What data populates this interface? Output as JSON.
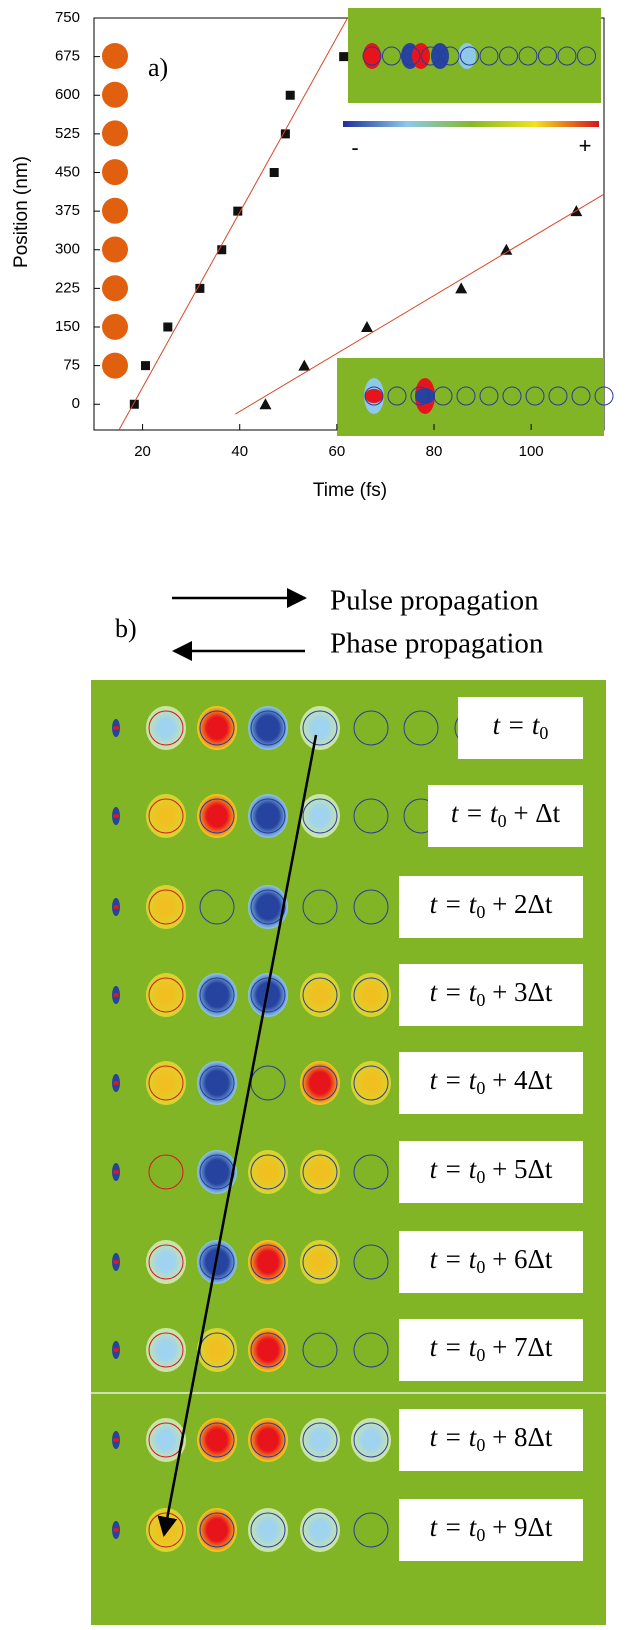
{
  "chart_data": {
    "type": "scatter",
    "panel_label": "a)",
    "x_label": "Time (fs)",
    "y_label": "Position (nm)",
    "xlim": [
      10,
      115
    ],
    "xticks": [
      20,
      40,
      60,
      80,
      100
    ],
    "ylim": [
      -50,
      750
    ],
    "yticks": [
      0,
      75,
      150,
      225,
      300,
      375,
      450,
      525,
      600,
      675,
      750
    ],
    "colorbar_labels": [
      "-",
      "+"
    ],
    "series": [
      {
        "marker": "square",
        "color": "#111111",
        "x": [
          18.3,
          20.6,
          25.2,
          31.8,
          36.3,
          39.6,
          47.1,
          49.4,
          50.4,
          61.4
        ],
        "values": [
          0,
          75,
          150,
          225,
          300,
          375,
          450,
          525,
          600,
          675
        ]
      },
      {
        "marker": "triangle",
        "color": "#111111",
        "x": [
          45.3,
          53.3,
          66.2,
          85.6,
          94.9,
          109.3
        ],
        "values": [
          0,
          75,
          150,
          225,
          300,
          375
        ]
      },
      {
        "marker": "line",
        "color": "#d9472b",
        "x": [
          14.9,
          62.2
        ],
        "values": [
          -54,
          750
        ]
      },
      {
        "marker": "line",
        "color": "#d9472b",
        "x": [
          39.1,
          115
        ],
        "values": [
          -19,
          408
        ]
      }
    ]
  },
  "panel_b": {
    "label": "b)",
    "pulse": "Pulse propagation",
    "phase": "Phase propagation",
    "time_labels": [
      {
        "pre": "t = t",
        "sub": "0"
      },
      {
        "pre": "t = t",
        "sub": "0",
        "post": " + Δt"
      },
      {
        "pre": "t = t",
        "sub": "0",
        "post": " + 2Δt"
      },
      {
        "pre": "t = t",
        "sub": "0",
        "post": " + 3Δt"
      },
      {
        "pre": "t = t",
        "sub": "0",
        "post": " + 4Δt"
      },
      {
        "pre": "t = t",
        "sub": "0",
        "post": " + 5Δt"
      },
      {
        "pre": "t = t",
        "sub": "0",
        "post": " + 6Δt"
      },
      {
        "pre": "t = t",
        "sub": "0",
        "post": " + 7Δt"
      },
      {
        "pre": "t = t",
        "sub": "0",
        "post": " + 8Δt"
      },
      {
        "pre": "t = t",
        "sub": "0",
        "post": " + 9Δt"
      }
    ]
  }
}
